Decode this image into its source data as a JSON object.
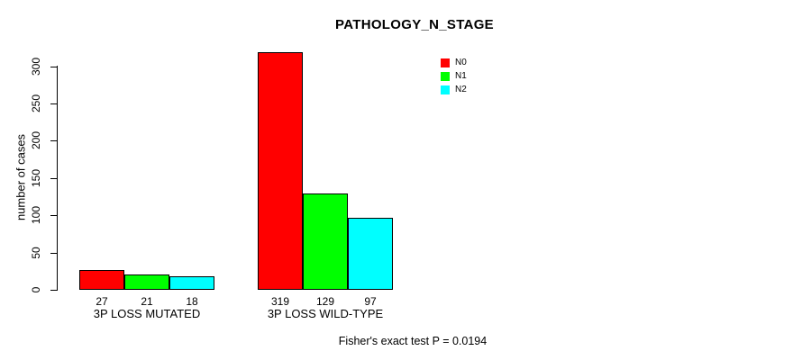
{
  "title": "PATHOLOGY_N_STAGE",
  "y_axis": {
    "label": "number of cases",
    "tick_labels": [
      "0",
      "50",
      "100",
      "150",
      "200",
      "250",
      "300"
    ]
  },
  "legend": {
    "items": [
      {
        "label": "N0",
        "color": "#ff0000"
      },
      {
        "label": "N1",
        "color": "#00ff00"
      },
      {
        "label": "N2",
        "color": "#00ffff"
      }
    ]
  },
  "footer": "Fisher's exact test P = 0.0194",
  "chart_data": {
    "type": "bar",
    "title": "PATHOLOGY_N_STAGE",
    "xlabel": "",
    "ylabel": "number of cases",
    "categories": [
      "3P LOSS MUTATED",
      "3P LOSS WILD-TYPE"
    ],
    "series": [
      {
        "name": "N0",
        "color": "#ff0000",
        "values": [
          27,
          319
        ]
      },
      {
        "name": "N1",
        "color": "#00ff00",
        "values": [
          21,
          129
        ]
      },
      {
        "name": "N2",
        "color": "#00ffff",
        "values": [
          18,
          97
        ]
      }
    ],
    "bar_value_labels": [
      [
        27,
        21,
        18
      ],
      [
        319,
        129,
        97
      ]
    ],
    "yticks": [
      0,
      50,
      100,
      150,
      200,
      250,
      300
    ],
    "ylim": [
      0,
      325
    ],
    "grid": false,
    "legend_position": "top-right",
    "annotation": "Fisher's exact test P = 0.0194"
  }
}
